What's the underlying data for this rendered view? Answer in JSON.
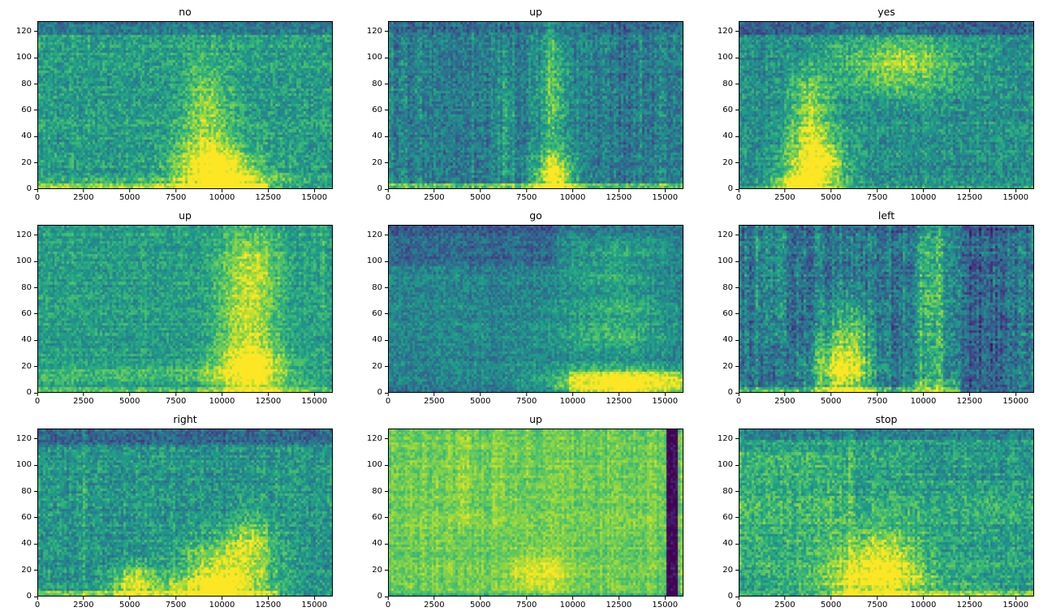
{
  "figure": {
    "background": "#ffffff",
    "rows": 3,
    "cols": 3,
    "colormap": "viridis",
    "viridis_colors": [
      "#440154",
      "#46327e",
      "#365c8d",
      "#277f8e",
      "#1fa187",
      "#4ac16d",
      "#a0da39",
      "#fde725"
    ],
    "text_color": "#000000"
  },
  "axes": {
    "xlim": [
      0,
      16000
    ],
    "ylim": [
      0,
      128
    ],
    "x_ticks": [
      0,
      2500,
      5000,
      7500,
      10000,
      12500,
      15000
    ],
    "y_ticks": [
      0,
      20,
      40,
      60,
      80,
      100,
      120
    ]
  },
  "chart_data": [
    {
      "type": "heatmap",
      "title": "no",
      "xlabel": "",
      "ylabel": "",
      "xlim": [
        0,
        16000
      ],
      "ylim": [
        0,
        128
      ],
      "x_ticks": [
        0,
        2500,
        5000,
        7500,
        10000,
        12500,
        15000
      ],
      "y_ticks": [
        0,
        20,
        40,
        60,
        80,
        100,
        120
      ],
      "colormap": "viridis",
      "energy_field": {
        "seed": 101,
        "base": 0.55,
        "noise": 0.15,
        "row_noise": 0.04,
        "col_noise": 0.03,
        "blobs": [
          {
            "x": 9600,
            "y": 18,
            "sx": 1500,
            "sy": 13,
            "a": 0.5
          },
          {
            "x": 9200,
            "y": 60,
            "sx": 900,
            "sy": 28,
            "a": 0.28
          },
          {
            "x": 10800,
            "y": 6,
            "sx": 2200,
            "sy": 5,
            "a": 0.3
          }
        ],
        "rects": [
          {
            "x0": 0,
            "x1": 16000,
            "y0": 119,
            "y1": 128,
            "a": -0.16
          },
          {
            "x0": 0,
            "x1": 12500,
            "y0": 0,
            "y1": 3,
            "a": 0.28
          },
          {
            "x0": 0,
            "x1": 8000,
            "y0": 3,
            "y1": 8,
            "a": 0.08
          }
        ]
      }
    },
    {
      "type": "heatmap",
      "title": "up",
      "xlabel": "",
      "ylabel": "",
      "xlim": [
        0,
        16000
      ],
      "ylim": [
        0,
        128
      ],
      "x_ticks": [
        0,
        2500,
        5000,
        7500,
        10000,
        12500,
        15000
      ],
      "y_ticks": [
        0,
        20,
        40,
        60,
        80,
        100,
        120
      ],
      "colormap": "viridis",
      "energy_field": {
        "seed": 202,
        "base": 0.43,
        "noise": 0.15,
        "row_noise": 0.03,
        "col_noise": 0.07,
        "blobs": [
          {
            "x": 9000,
            "y": 10,
            "sx": 750,
            "sy": 11,
            "a": 0.55
          },
          {
            "x": 8950,
            "y": 70,
            "sx": 550,
            "sy": 45,
            "a": 0.3
          },
          {
            "x": 6400,
            "y": 40,
            "sx": 350,
            "sy": 40,
            "a": 0.15
          }
        ],
        "rects": [
          {
            "x0": 0,
            "x1": 16000,
            "y0": 0,
            "y1": 3,
            "a": 0.3
          },
          {
            "x0": 0,
            "x1": 16000,
            "y0": 120,
            "y1": 128,
            "a": -0.08
          },
          {
            "x0": 12400,
            "x1": 13100,
            "y0": 0,
            "y1": 128,
            "a": -0.06
          }
        ]
      }
    },
    {
      "type": "heatmap",
      "title": "yes",
      "xlabel": "",
      "ylabel": "",
      "xlim": [
        0,
        16000
      ],
      "ylim": [
        0,
        128
      ],
      "x_ticks": [
        0,
        2500,
        5000,
        7500,
        10000,
        12500,
        15000
      ],
      "y_ticks": [
        0,
        20,
        40,
        60,
        80,
        100,
        120
      ],
      "colormap": "viridis",
      "energy_field": {
        "seed": 303,
        "base": 0.5,
        "noise": 0.15,
        "row_noise": 0.04,
        "col_noise": 0.04,
        "blobs": [
          {
            "x": 4100,
            "y": 16,
            "sx": 1100,
            "sy": 14,
            "a": 0.55
          },
          {
            "x": 3900,
            "y": 46,
            "sx": 850,
            "sy": 16,
            "a": 0.33
          },
          {
            "x": 3800,
            "y": 74,
            "sx": 650,
            "sy": 13,
            "a": 0.2
          },
          {
            "x": 8800,
            "y": 95,
            "sx": 2300,
            "sy": 15,
            "a": 0.35
          },
          {
            "x": 3100,
            "y": 4,
            "sx": 900,
            "sy": 5,
            "a": 0.4
          }
        ],
        "rects": [
          {
            "x0": 0,
            "x1": 16000,
            "y0": 119,
            "y1": 128,
            "a": -0.2
          },
          {
            "x0": 0,
            "x1": 16000,
            "y0": 0,
            "y1": 2,
            "a": 0.12
          }
        ]
      }
    },
    {
      "type": "heatmap",
      "title": "up",
      "xlabel": "",
      "ylabel": "",
      "xlim": [
        0,
        16000
      ],
      "ylim": [
        0,
        128
      ],
      "x_ticks": [
        0,
        2500,
        5000,
        7500,
        10000,
        12500,
        15000
      ],
      "y_ticks": [
        0,
        20,
        40,
        60,
        80,
        100,
        120
      ],
      "colormap": "viridis",
      "energy_field": {
        "seed": 404,
        "base": 0.56,
        "noise": 0.13,
        "row_noise": 0.04,
        "col_noise": 0.03,
        "blobs": [
          {
            "x": 11600,
            "y": 16,
            "sx": 1400,
            "sy": 15,
            "a": 0.48
          },
          {
            "x": 11400,
            "y": 58,
            "sx": 1050,
            "sy": 28,
            "a": 0.3
          },
          {
            "x": 11700,
            "y": 100,
            "sx": 1150,
            "sy": 22,
            "a": 0.22
          }
        ],
        "rects": [
          {
            "x0": 0,
            "x1": 10300,
            "y0": 7,
            "y1": 19,
            "a": 0.1
          },
          {
            "x0": 0,
            "x1": 16000,
            "y0": 0,
            "y1": 3,
            "a": 0.18
          },
          {
            "x0": 15300,
            "x1": 15600,
            "y0": 55,
            "y1": 128,
            "a": 0.08
          }
        ]
      }
    },
    {
      "type": "heatmap",
      "title": "go",
      "xlabel": "",
      "ylabel": "",
      "xlim": [
        0,
        16000
      ],
      "ylim": [
        0,
        128
      ],
      "x_ticks": [
        0,
        2500,
        5000,
        7500,
        10000,
        12500,
        15000
      ],
      "y_ticks": [
        0,
        20,
        40,
        60,
        80,
        100,
        120
      ],
      "colormap": "viridis",
      "energy_field": {
        "seed": 505,
        "base": 0.46,
        "noise": 0.13,
        "row_noise": 0.04,
        "col_noise": 0.03,
        "blobs": [
          {
            "x": 12800,
            "y": 8,
            "sx": 2900,
            "sy": 8,
            "a": 0.5
          },
          {
            "x": 12200,
            "y": 42,
            "sx": 2200,
            "sy": 8,
            "a": 0.22
          },
          {
            "x": 12600,
            "y": 64,
            "sx": 2000,
            "sy": 8,
            "a": 0.18
          },
          {
            "x": 12100,
            "y": 87,
            "sx": 1800,
            "sy": 7,
            "a": 0.16
          },
          {
            "x": 12600,
            "y": 108,
            "sx": 1500,
            "sy": 6,
            "a": 0.15
          }
        ],
        "rects": [
          {
            "x0": 0,
            "x1": 9200,
            "y0": 96,
            "y1": 128,
            "a": -0.12
          },
          {
            "x0": 0,
            "x1": 16000,
            "y0": 120,
            "y1": 128,
            "a": -0.07
          },
          {
            "x0": 9800,
            "x1": 16000,
            "y0": 0,
            "y1": 16,
            "a": 0.18
          },
          {
            "x0": 0,
            "x1": 9000,
            "y0": 0,
            "y1": 5,
            "a": -0.08
          }
        ]
      }
    },
    {
      "type": "heatmap",
      "title": "left",
      "xlabel": "",
      "ylabel": "",
      "xlim": [
        0,
        16000
      ],
      "ylim": [
        0,
        128
      ],
      "x_ticks": [
        0,
        2500,
        5000,
        7500,
        10000,
        12500,
        15000
      ],
      "y_ticks": [
        0,
        20,
        40,
        60,
        80,
        100,
        120
      ],
      "colormap": "viridis",
      "energy_field": {
        "seed": 606,
        "base": 0.4,
        "noise": 0.17,
        "row_noise": 0.04,
        "col_noise": 0.09,
        "blobs": [
          {
            "x": 5600,
            "y": 16,
            "sx": 1100,
            "sy": 15,
            "a": 0.55
          },
          {
            "x": 5850,
            "y": 46,
            "sx": 900,
            "sy": 17,
            "a": 0.3
          },
          {
            "x": 10400,
            "y": 60,
            "sx": 700,
            "sy": 55,
            "a": 0.18
          }
        ],
        "rects": [
          {
            "x0": 900,
            "x1": 2600,
            "y0": 35,
            "y1": 128,
            "a": 0.08
          },
          {
            "x0": 9700,
            "x1": 11200,
            "y0": 0,
            "y1": 128,
            "a": 0.1
          },
          {
            "x0": 12300,
            "x1": 14600,
            "y0": 0,
            "y1": 128,
            "a": -0.08
          },
          {
            "x0": 0,
            "x1": 12000,
            "y0": 0,
            "y1": 3,
            "a": 0.28
          },
          {
            "x0": 8800,
            "x1": 12000,
            "y0": 3,
            "y1": 9,
            "a": 0.15
          },
          {
            "x0": 0,
            "x1": 16000,
            "y0": 122,
            "y1": 128,
            "a": -0.06
          }
        ]
      }
    },
    {
      "type": "heatmap",
      "title": "right",
      "xlabel": "",
      "ylabel": "",
      "xlim": [
        0,
        16000
      ],
      "ylim": [
        0,
        128
      ],
      "x_ticks": [
        0,
        2500,
        5000,
        7500,
        10000,
        12500,
        15000
      ],
      "y_ticks": [
        0,
        20,
        40,
        60,
        80,
        100,
        120
      ],
      "colormap": "viridis",
      "energy_field": {
        "seed": 707,
        "base": 0.52,
        "noise": 0.15,
        "row_noise": 0.04,
        "col_noise": 0.04,
        "blobs": [
          {
            "x": 10300,
            "y": 20,
            "sx": 1700,
            "sy": 16,
            "a": 0.48
          },
          {
            "x": 11600,
            "y": 45,
            "sx": 850,
            "sy": 12,
            "a": 0.25
          },
          {
            "x": 9100,
            "y": 7,
            "sx": 1900,
            "sy": 6,
            "a": 0.3
          },
          {
            "x": 5200,
            "y": 11,
            "sx": 850,
            "sy": 9,
            "a": 0.4
          }
        ],
        "rects": [
          {
            "x0": 0,
            "x1": 16000,
            "y0": 116,
            "y1": 128,
            "a": -0.17
          },
          {
            "x0": 2400,
            "x1": 2600,
            "y0": 0,
            "y1": 128,
            "a": 0.1
          },
          {
            "x0": 0,
            "x1": 13200,
            "y0": 0,
            "y1": 3,
            "a": 0.24
          }
        ]
      }
    },
    {
      "type": "heatmap",
      "title": "up",
      "xlabel": "",
      "ylabel": "",
      "xlim": [
        0,
        16000
      ],
      "ylim": [
        0,
        128
      ],
      "x_ticks": [
        0,
        2500,
        5000,
        7500,
        10000,
        12500,
        15000
      ],
      "y_ticks": [
        0,
        20,
        40,
        60,
        80,
        100,
        120
      ],
      "colormap": "viridis",
      "energy_field": {
        "seed": 808,
        "base": 0.78,
        "noise": 0.09,
        "row_noise": 0.03,
        "col_noise": 0.04,
        "blobs": [
          {
            "x": 8200,
            "y": 17,
            "sx": 1100,
            "sy": 12,
            "a": 0.2
          }
        ],
        "rects": [
          {
            "x0": 15100,
            "x1": 15800,
            "y0": 0,
            "y1": 128,
            "a": -0.75
          },
          {
            "x0": 3600,
            "x1": 4400,
            "y0": 55,
            "y1": 128,
            "a": 0.06
          },
          {
            "x0": 5700,
            "x1": 6300,
            "y0": 55,
            "y1": 128,
            "a": 0.05
          },
          {
            "x0": 7300,
            "x1": 7700,
            "y0": 90,
            "y1": 128,
            "a": 0.05
          },
          {
            "x0": 0,
            "x1": 16000,
            "y0": 0,
            "y1": 2,
            "a": -0.16
          },
          {
            "x0": 0,
            "x1": 16000,
            "y0": 126,
            "y1": 128,
            "a": -0.06
          }
        ]
      }
    },
    {
      "type": "heatmap",
      "title": "stop",
      "xlabel": "",
      "ylabel": "",
      "xlim": [
        0,
        16000
      ],
      "ylim": [
        0,
        128
      ],
      "x_ticks": [
        0,
        2500,
        5000,
        7500,
        10000,
        12500,
        15000
      ],
      "y_ticks": [
        0,
        20,
        40,
        60,
        80,
        100,
        120
      ],
      "colormap": "viridis",
      "energy_field": {
        "seed": 909,
        "base": 0.58,
        "noise": 0.15,
        "row_noise": 0.05,
        "col_noise": 0.04,
        "blobs": [
          {
            "x": 7600,
            "y": 27,
            "sx": 1600,
            "sy": 17,
            "a": 0.4
          },
          {
            "x": 7200,
            "y": 11,
            "sx": 2300,
            "sy": 8,
            "a": 0.28
          }
        ],
        "rects": [
          {
            "x0": 0,
            "x1": 16000,
            "y0": 120,
            "y1": 128,
            "a": -0.15
          },
          {
            "x0": 0,
            "x1": 5600,
            "y0": 15,
            "y1": 110,
            "a": 0.06
          },
          {
            "x0": 5900,
            "x1": 6150,
            "y0": 0,
            "y1": 128,
            "a": 0.12
          },
          {
            "x0": 5000,
            "x1": 16000,
            "y0": 0,
            "y1": 3,
            "a": 0.2
          },
          {
            "x0": 9500,
            "x1": 16000,
            "y0": 88,
            "y1": 118,
            "a": -0.05
          }
        ]
      }
    }
  ]
}
